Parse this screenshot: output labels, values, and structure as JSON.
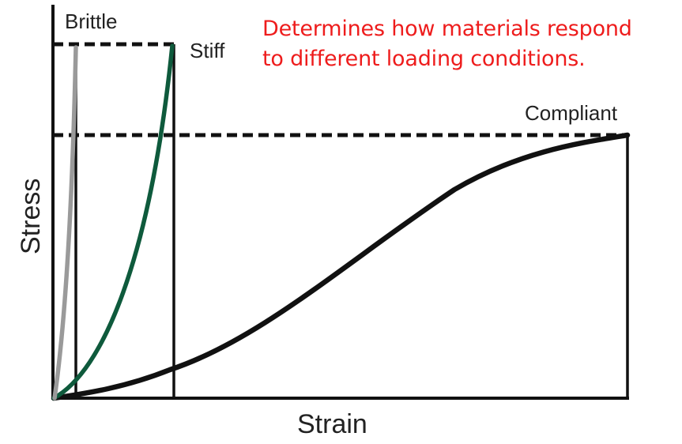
{
  "annotation": {
    "line1": "Determines how materials respond",
    "line2": "to different loading conditions."
  },
  "axes": {
    "xlabel": "Strain",
    "ylabel": "Stress"
  },
  "curves": {
    "brittle": {
      "label": "Brittle",
      "color": "#9a9a9a"
    },
    "stiff": {
      "label": "Stiff",
      "color": "#0e5a3c"
    },
    "compliant": {
      "label": "Compliant",
      "color": "#111111"
    }
  },
  "colors": {
    "annotation": "#ee1c1c",
    "axis": "#111111"
  }
}
